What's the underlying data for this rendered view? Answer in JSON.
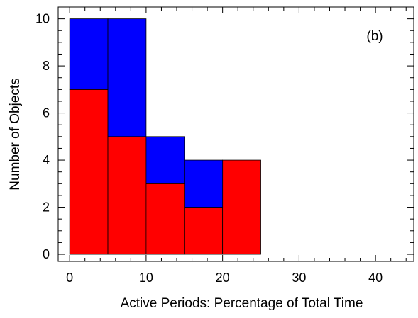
{
  "chart_data": {
    "type": "bar",
    "stacked": true,
    "bin_edges": [
      0,
      5,
      10,
      15,
      20,
      25
    ],
    "series": [
      {
        "values": [
          7,
          5,
          3,
          2,
          4
        ],
        "color": "#ff0000"
      },
      {
        "values": [
          3,
          5,
          2,
          2,
          0
        ],
        "color": "#0000ff"
      }
    ],
    "title": "",
    "annotation": "(b)",
    "xlabel": "Active Periods: Percentage of Total Time",
    "ylabel": "Number of Objects",
    "xlim": [
      -1.5,
      45
    ],
    "ylim": [
      -0.3,
      10.5
    ],
    "xticks": [
      0,
      10,
      20,
      30,
      40
    ],
    "xtick_labels": [
      "0",
      "10",
      "20",
      "30",
      "40"
    ],
    "yticks": [
      0,
      2,
      4,
      6,
      8,
      10
    ],
    "ytick_labels": [
      "0",
      "2",
      "4",
      "6",
      "8",
      "10"
    ],
    "grid": false,
    "legend": "none"
  }
}
